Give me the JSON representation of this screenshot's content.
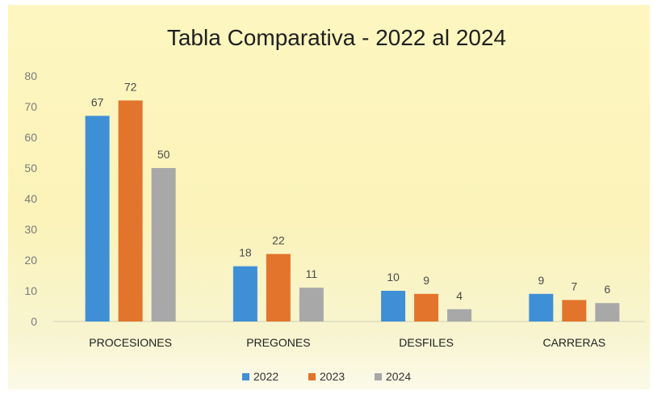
{
  "chart_data": {
    "type": "bar",
    "title": "Tabla Comparativa - 2022 al 2024",
    "xlabel": "",
    "ylabel": "",
    "categories": [
      "PROCESIONES",
      "PREGONES",
      "DESFILES",
      "CARRERAS"
    ],
    "series": [
      {
        "name": "2022",
        "color": "#3f8fd6",
        "values": [
          67,
          18,
          10,
          9
        ]
      },
      {
        "name": "2023",
        "color": "#e2742c",
        "values": [
          72,
          22,
          9,
          7
        ]
      },
      {
        "name": "2024",
        "color": "#a8a8a8",
        "values": [
          50,
          11,
          4,
          6
        ]
      }
    ],
    "ylim": [
      0,
      80
    ],
    "yticks": [
      0,
      10,
      20,
      30,
      40,
      50,
      60,
      70,
      80
    ],
    "grid": false,
    "data_labels": true,
    "legend_position": "bottom"
  }
}
